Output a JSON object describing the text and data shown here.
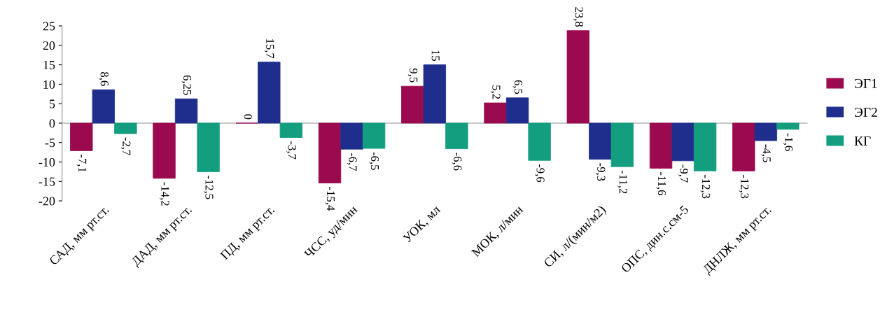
{
  "chart_data": {
    "type": "bar",
    "categories": [
      "САД, мм рт.ст.",
      "ДАД, мм рт.ст.",
      "ПД, мм рт.ст.",
      "ЧСС, уд/мин",
      "УОК, мл",
      "МОК, л/мин",
      "СИ, л/(мин/м2)",
      "ОПС, дин.с.см-5",
      "ДНЛЖ, мм рт.ст."
    ],
    "series": [
      {
        "name": "ЭГ1",
        "color": "#9b0a4e",
        "values": [
          -7.1,
          -14.2,
          0,
          -15.4,
          9.5,
          5.2,
          23.8,
          -11.6,
          -12.3
        ],
        "value_labels": [
          "-7,1",
          "-14,2",
          "0",
          "-15,4",
          "9,5",
          "5,2",
          "23,8",
          "-11,6",
          "-12,3"
        ]
      },
      {
        "name": "ЭГ2",
        "color": "#1f2e8c",
        "values": [
          8.6,
          6.25,
          15.7,
          -6.7,
          15,
          6.5,
          -9.3,
          -9.7,
          -4.5
        ],
        "value_labels": [
          "8,6",
          "6,25",
          "15,7",
          "-6,7",
          "15",
          "6,5",
          "-9,3",
          "-9,7",
          "-4,5"
        ]
      },
      {
        "name": "КГ",
        "color": "#139e80",
        "values": [
          -2.7,
          -12.5,
          -3.7,
          -6.5,
          -6.6,
          -9.6,
          -11.2,
          -12.3,
          -1.6
        ],
        "value_labels": [
          "-2,7",
          "-12,5",
          "-3,7",
          "-6,5",
          "-6,6",
          "-9,6",
          "-11,2",
          "-12,3",
          "-1,6"
        ]
      }
    ],
    "ylim": [
      -20,
      25
    ],
    "yticks": [
      -20,
      -15,
      -10,
      -5,
      0,
      5,
      10,
      15,
      20,
      25
    ],
    "legend": "right"
  }
}
